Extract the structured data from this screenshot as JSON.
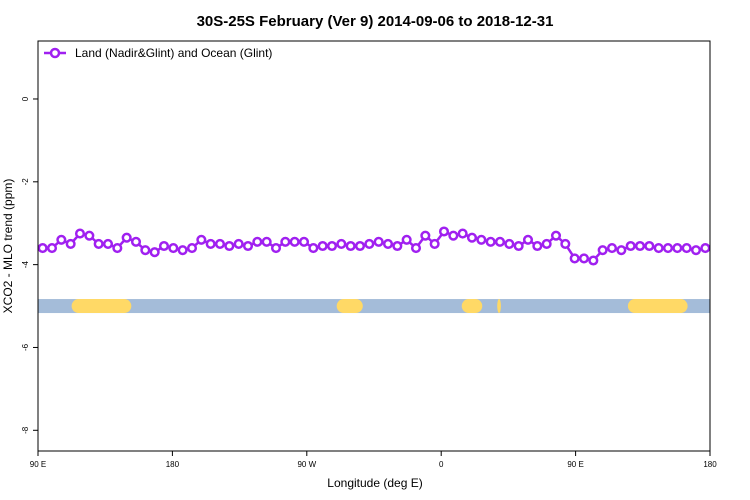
{
  "chart_data": {
    "type": "line",
    "title": "30S-25S February (Ver 9)   2014-09-06 to 2018-12-31",
    "xlabel": "Longitude (deg E)",
    "ylabel": "XCO2 - MLO trend (ppm)",
    "xlim": [
      90,
      450
    ],
    "ylim": [
      -8.5,
      1.4
    ],
    "x_ticks": [
      {
        "value": 90,
        "label": "90 E"
      },
      {
        "value": 162,
        "label": "180"
      },
      {
        "value": 234,
        "label": "90 W"
      },
      {
        "value": 306,
        "label": "0"
      },
      {
        "value": 378,
        "label": "90 E"
      },
      {
        "value": 450,
        "label": "180"
      }
    ],
    "y_ticks": [
      {
        "value": 0,
        "label": "0"
      },
      {
        "value": -2,
        "label": "-2"
      },
      {
        "value": -4,
        "label": "-4"
      },
      {
        "value": -6,
        "label": "-6"
      },
      {
        "value": -8,
        "label": "-8"
      }
    ],
    "grid": false,
    "legend_position": "top-left",
    "series": [
      {
        "name": "Land (Nadir&Glint) and Ocean (Glint)",
        "color": "#a020f0",
        "x": [
          92.5,
          97.5,
          102.5,
          107.5,
          112.5,
          117.5,
          122.5,
          127.5,
          132.5,
          137.5,
          142.5,
          147.5,
          152.5,
          157.5,
          162.5,
          167.5,
          172.5,
          177.5,
          182.5,
          187.5,
          192.5,
          197.5,
          202.5,
          207.5,
          212.5,
          217.5,
          222.5,
          227.5,
          232.5,
          237.5,
          242.5,
          247.5,
          252.5,
          257.5,
          262.5,
          267.5,
          272.5,
          277.5,
          282.5,
          287.5,
          292.5,
          297.5,
          302.5,
          307.5,
          312.5,
          317.5,
          322.5,
          327.5,
          332.5,
          337.5,
          342.5,
          347.5,
          352.5,
          357.5,
          362.5,
          367.5,
          372.5,
          377.5,
          382.5,
          387.5,
          392.5,
          397.5,
          402.5,
          407.5,
          412.5,
          417.5,
          422.5,
          427.5,
          432.5,
          437.5,
          442.5,
          447.5
        ],
        "values": [
          -3.6,
          -3.6,
          -3.4,
          -3.5,
          -3.25,
          -3.3,
          -3.5,
          -3.5,
          -3.6,
          -3.35,
          -3.45,
          -3.65,
          -3.7,
          -3.55,
          -3.6,
          -3.65,
          -3.6,
          -3.4,
          -3.5,
          -3.5,
          -3.55,
          -3.5,
          -3.55,
          -3.45,
          -3.45,
          -3.6,
          -3.45,
          -3.45,
          -3.45,
          -3.6,
          -3.55,
          -3.55,
          -3.5,
          -3.55,
          -3.55,
          -3.5,
          -3.45,
          -3.5,
          -3.55,
          -3.4,
          -3.6,
          -3.3,
          -3.5,
          -3.2,
          -3.3,
          -3.25,
          -3.35,
          -3.4,
          -3.45,
          -3.45,
          -3.5,
          -3.55,
          -3.4,
          -3.55,
          -3.5,
          -3.3,
          -3.5,
          -3.85,
          -3.85,
          -3.9,
          -3.65,
          -3.6,
          -3.65,
          -3.55,
          -3.55,
          -3.55,
          -3.6,
          -3.6,
          -3.6,
          -3.6,
          -3.65,
          -3.6
        ]
      }
    ],
    "surface_band": {
      "y": -5.0,
      "ocean_color": "#a4bcd9",
      "land_color": "#ffd966",
      "land_segments": [
        [
          108,
          140
        ],
        [
          250,
          264
        ],
        [
          317,
          328
        ],
        [
          336,
          338
        ],
        [
          406,
          438
        ]
      ]
    }
  }
}
